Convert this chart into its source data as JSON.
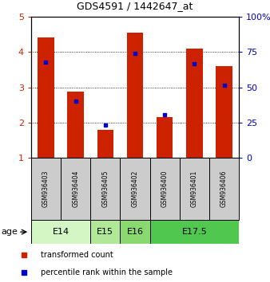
{
  "title": "GDS4591 / 1442647_at",
  "samples": [
    "GSM936403",
    "GSM936404",
    "GSM936405",
    "GSM936402",
    "GSM936400",
    "GSM936401",
    "GSM936406"
  ],
  "red_values": [
    4.42,
    2.88,
    1.8,
    4.55,
    2.15,
    4.1,
    3.6
  ],
  "blue_values": [
    3.72,
    2.6,
    1.93,
    3.97,
    2.22,
    3.68,
    3.06
  ],
  "ylim": [
    1,
    5
  ],
  "y2lim": [
    0,
    100
  ],
  "yticks": [
    1,
    2,
    3,
    4,
    5
  ],
  "y2ticks": [
    0,
    25,
    50,
    75,
    100
  ],
  "age_groups": [
    {
      "label": "E14",
      "start": 0,
      "end": 2,
      "color": "#d4f5c4"
    },
    {
      "label": "E15",
      "start": 2,
      "end": 3,
      "color": "#b0e898"
    },
    {
      "label": "E16",
      "start": 3,
      "end": 4,
      "color": "#8ad870"
    },
    {
      "label": "E17.5",
      "start": 4,
      "end": 7,
      "color": "#50c850"
    }
  ],
  "bar_color": "#cc2200",
  "dot_color": "#0000cc",
  "tick_color_left": "#cc2200",
  "tick_color_right": "#0000cc",
  "sample_box_color": "#cccccc",
  "legend_items": [
    {
      "color": "#cc2200",
      "label": "transformed count"
    },
    {
      "color": "#0000cc",
      "label": "percentile rank within the sample"
    }
  ]
}
